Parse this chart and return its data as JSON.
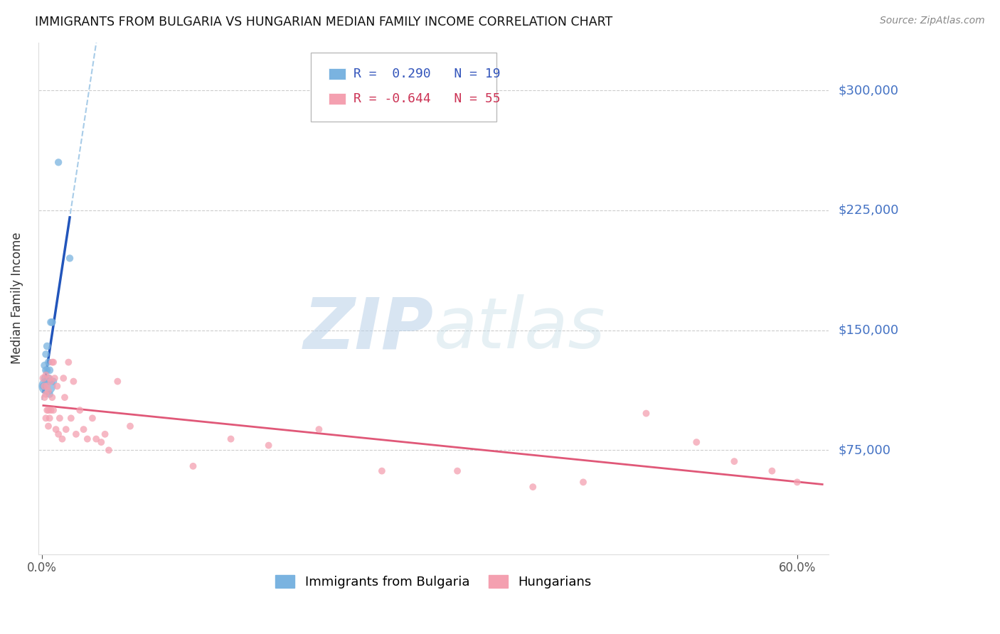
{
  "title": "IMMIGRANTS FROM BULGARIA VS HUNGARIAN MEDIAN FAMILY INCOME CORRELATION CHART",
  "source": "Source: ZipAtlas.com",
  "ylabel": "Median Family Income",
  "ytick_labels": [
    "$75,000",
    "$150,000",
    "$225,000",
    "$300,000"
  ],
  "ytick_values": [
    75000,
    150000,
    225000,
    300000
  ],
  "ymin": 10000,
  "ymax": 330000,
  "xmin": -0.003,
  "xmax": 0.625,
  "blue_R": 0.29,
  "blue_N": 19,
  "pink_R": -0.644,
  "pink_N": 55,
  "blue_color": "#7ab3e0",
  "pink_color": "#f4a0b0",
  "blue_line_color": "#2255bb",
  "pink_line_color": "#e05878",
  "dashed_line_color": "#a8cce8",
  "watermark_zip": "ZIP",
  "watermark_atlas": "atlas",
  "watermark_color_zip": "#c5d8ec",
  "watermark_color_atlas": "#c5d8ec",
  "legend_label_blue": "Immigrants from Bulgaria",
  "legend_label_pink": "Hungarians",
  "blue_x": [
    0.001,
    0.002,
    0.002,
    0.003,
    0.003,
    0.003,
    0.004,
    0.004,
    0.004,
    0.005,
    0.005,
    0.005,
    0.006,
    0.006,
    0.007,
    0.008,
    0.009,
    0.013,
    0.022
  ],
  "blue_y": [
    115000,
    128000,
    120000,
    135000,
    118000,
    125000,
    140000,
    125000,
    115000,
    130000,
    120000,
    118000,
    125000,
    110000,
    155000,
    155000,
    118000,
    255000,
    195000
  ],
  "blue_size": [
    60,
    60,
    50,
    55,
    55,
    60,
    60,
    55,
    300,
    55,
    60,
    55,
    60,
    55,
    60,
    60,
    55,
    55,
    55
  ],
  "pink_x": [
    0.001,
    0.002,
    0.002,
    0.003,
    0.003,
    0.003,
    0.004,
    0.004,
    0.005,
    0.005,
    0.005,
    0.006,
    0.006,
    0.007,
    0.007,
    0.008,
    0.008,
    0.009,
    0.009,
    0.01,
    0.011,
    0.012,
    0.013,
    0.014,
    0.016,
    0.017,
    0.018,
    0.019,
    0.021,
    0.023,
    0.025,
    0.027,
    0.03,
    0.033,
    0.036,
    0.04,
    0.043,
    0.047,
    0.05,
    0.053,
    0.06,
    0.07,
    0.12,
    0.15,
    0.18,
    0.22,
    0.27,
    0.33,
    0.39,
    0.43,
    0.48,
    0.52,
    0.55,
    0.58,
    0.6
  ],
  "pink_y": [
    120000,
    115000,
    108000,
    122000,
    110000,
    95000,
    115000,
    100000,
    112000,
    100000,
    90000,
    120000,
    95000,
    118000,
    100000,
    130000,
    108000,
    130000,
    100000,
    120000,
    88000,
    115000,
    85000,
    95000,
    82000,
    120000,
    108000,
    88000,
    130000,
    95000,
    118000,
    85000,
    100000,
    88000,
    82000,
    95000,
    82000,
    80000,
    85000,
    75000,
    118000,
    90000,
    65000,
    82000,
    78000,
    88000,
    62000,
    62000,
    52000,
    55000,
    98000,
    80000,
    68000,
    62000,
    55000
  ],
  "pink_size": [
    60,
    55,
    50,
    50,
    50,
    50,
    50,
    50,
    50,
    50,
    50,
    50,
    50,
    50,
    50,
    50,
    50,
    50,
    50,
    50,
    50,
    50,
    50,
    50,
    50,
    50,
    50,
    50,
    50,
    50,
    50,
    50,
    50,
    50,
    50,
    50,
    50,
    50,
    50,
    50,
    50,
    50,
    50,
    50,
    50,
    50,
    50,
    50,
    50,
    50,
    50,
    50,
    50,
    50,
    50
  ]
}
